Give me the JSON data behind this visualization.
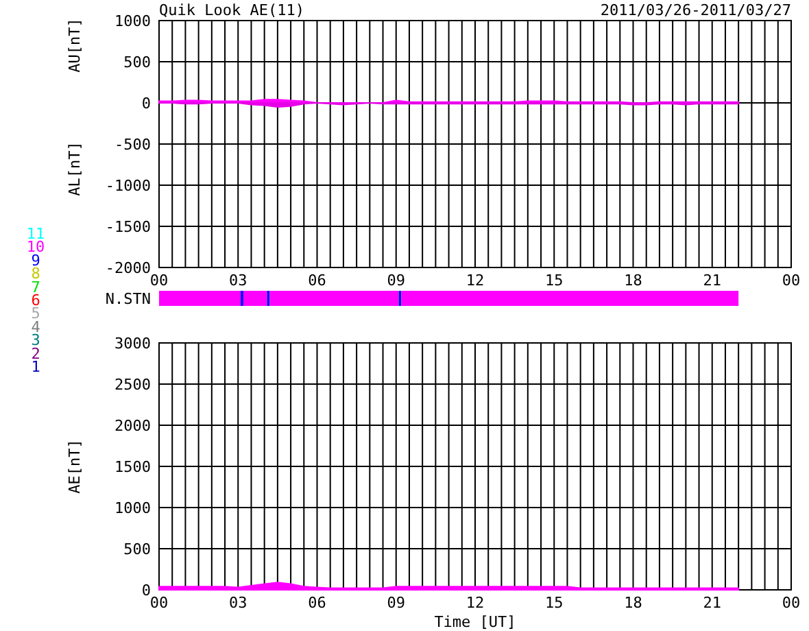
{
  "chart_data": [
    {
      "type": "area",
      "title": "Quik Look AE(11)",
      "subtitle": "2011/03/26-2011/03/27",
      "ylabel": "AU[nT]",
      "annotations": [
        "AL[nT]"
      ],
      "x": [
        0,
        0.5,
        1,
        1.5,
        2,
        2.5,
        3,
        3.5,
        4,
        4.5,
        5,
        5.5,
        6,
        6.5,
        7,
        7.5,
        8,
        8.5,
        9,
        9.5,
        10,
        10.5,
        11,
        11.5,
        12,
        12.5,
        13,
        13.5,
        14,
        14.5,
        15,
        15.5,
        16,
        16.5,
        17,
        17.5,
        18,
        18.5,
        19,
        19.5,
        20,
        20.5,
        21,
        21.5,
        22
      ],
      "series": [
        {
          "color": "#ff00ff",
          "values": [
            20,
            20,
            30,
            30,
            20,
            20,
            20,
            20,
            40,
            40,
            30,
            20,
            0,
            0,
            0,
            0,
            0,
            0,
            30,
            10,
            10,
            10,
            10,
            10,
            10,
            10,
            10,
            10,
            20,
            20,
            20,
            10,
            10,
            10,
            10,
            10,
            0,
            0,
            10,
            10,
            10,
            10,
            10,
            10,
            10
          ]
        },
        {
          "color": "#e600e6",
          "values": [
            0,
            0,
            -10,
            -10,
            0,
            0,
            0,
            -20,
            -30,
            -50,
            -40,
            -10,
            0,
            -10,
            -20,
            -10,
            0,
            -10,
            -10,
            -10,
            -10,
            -10,
            -10,
            -10,
            -10,
            -10,
            -10,
            -10,
            -10,
            -10,
            -10,
            -10,
            -10,
            -10,
            -10,
            -10,
            -20,
            -20,
            -10,
            -10,
            -20,
            -10,
            -10,
            -10,
            -10
          ]
        }
      ],
      "xlim": [
        0,
        24
      ],
      "ylim": [
        -2000,
        1000
      ],
      "xticks": [
        {
          "value": 0,
          "label": "00"
        },
        {
          "value": 0.5,
          "label": null
        },
        {
          "value": 1,
          "label": null
        },
        {
          "value": 1.5,
          "label": null
        },
        {
          "value": 2,
          "label": null
        },
        {
          "value": 2.5,
          "label": null
        },
        {
          "value": 3,
          "label": "03"
        },
        {
          "value": 3.5,
          "label": null
        },
        {
          "value": 4,
          "label": null
        },
        {
          "value": 4.5,
          "label": null
        },
        {
          "value": 5,
          "label": null
        },
        {
          "value": 5.5,
          "label": null
        },
        {
          "value": 6,
          "label": "06"
        },
        {
          "value": 6.5,
          "label": null
        },
        {
          "value": 7,
          "label": null
        },
        {
          "value": 7.5,
          "label": null
        },
        {
          "value": 8,
          "label": null
        },
        {
          "value": 8.5,
          "label": null
        },
        {
          "value": 9,
          "label": "09"
        },
        {
          "value": 9.5,
          "label": null
        },
        {
          "value": 10,
          "label": null
        },
        {
          "value": 10.5,
          "label": null
        },
        {
          "value": 11,
          "label": null
        },
        {
          "value": 11.5,
          "label": null
        },
        {
          "value": 12,
          "label": "12"
        },
        {
          "value": 12.5,
          "label": null
        },
        {
          "value": 13,
          "label": null
        },
        {
          "value": 13.5,
          "label": null
        },
        {
          "value": 14,
          "label": null
        },
        {
          "value": 14.5,
          "label": null
        },
        {
          "value": 15,
          "label": "15"
        },
        {
          "value": 15.5,
          "label": null
        },
        {
          "value": 16,
          "label": null
        },
        {
          "value": 16.5,
          "label": null
        },
        {
          "value": 17,
          "label": null
        },
        {
          "value": 17.5,
          "label": null
        },
        {
          "value": 18,
          "label": "18"
        },
        {
          "value": 18.5,
          "label": null
        },
        {
          "value": 19,
          "label": null
        },
        {
          "value": 19.5,
          "label": null
        },
        {
          "value": 20,
          "label": null
        },
        {
          "value": 20.5,
          "label": null
        },
        {
          "value": 21,
          "label": "21"
        },
        {
          "value": 21.5,
          "label": null
        },
        {
          "value": 22,
          "label": null
        },
        {
          "value": 22.5,
          "label": null
        },
        {
          "value": 23,
          "label": null
        },
        {
          "value": 23.5,
          "label": null
        },
        {
          "value": 24,
          "label": "00"
        }
      ],
      "yticks": [
        1000,
        500,
        0,
        -500,
        -1000,
        -1500,
        -2000
      ],
      "grid": true
    },
    {
      "type": "bar",
      "orientation": "horizontal",
      "stacked": true,
      "categories": [
        "N.STN"
      ],
      "xlim": [
        0,
        24
      ],
      "tick_labels": "y",
      "legend": "left",
      "series": [
        {
          "name": "11",
          "color": "#00ffff",
          "values": [
            0
          ]
        },
        {
          "name": "10",
          "color": "#ff00ff",
          "values": [
            3.1
          ]
        },
        {
          "name": "9",
          "color": "#0000ff",
          "values": [
            0.1
          ]
        },
        {
          "name": "8",
          "color": "#c8c800",
          "values": [
            0
          ]
        },
        {
          "name": "7",
          "color": "#00e000",
          "values": [
            0
          ]
        },
        {
          "name": "6",
          "color": "#ff0000",
          "values": [
            0
          ]
        },
        {
          "name": "5",
          "color": "#a8a8a8",
          "values": [
            0
          ]
        },
        {
          "name": "4",
          "color": "#808080",
          "values": [
            0
          ]
        },
        {
          "name": "3",
          "color": "#008080",
          "values": [
            0
          ]
        },
        {
          "name": "2",
          "color": "#800080",
          "values": [
            0
          ]
        },
        {
          "name": "1",
          "color": "#0000c0",
          "values": [
            0
          ]
        },
        {
          "color": "#ff00ff",
          "values": [
            0.9
          ]
        },
        {
          "color": "#0000ff",
          "values": [
            0.1
          ]
        },
        {
          "color": "#ff00ff",
          "values": [
            4.9
          ]
        },
        {
          "color": "#0000ff",
          "values": [
            0.1
          ]
        },
        {
          "color": "#ff00ff",
          "values": [
            12.8
          ]
        }
      ]
    },
    {
      "type": "area",
      "xlabel": "Time [UT]",
      "ylabel": "AE[nT]",
      "x": [
        0,
        0.5,
        1,
        1.5,
        2,
        2.5,
        3,
        3.5,
        4,
        4.5,
        5,
        5.5,
        6,
        6.5,
        7,
        7.5,
        8,
        8.5,
        9,
        9.5,
        10,
        10.5,
        11,
        11.5,
        12,
        12.5,
        13,
        13.5,
        14,
        14.5,
        15,
        15.5,
        16,
        16.5,
        17,
        17.5,
        18,
        18.5,
        19,
        19.5,
        20,
        20.5,
        21,
        21.5,
        22
      ],
      "series": [
        {
          "color": "#ff00ff",
          "values": [
            40,
            40,
            40,
            40,
            40,
            40,
            30,
            50,
            70,
            90,
            70,
            40,
            30,
            20,
            20,
            20,
            20,
            20,
            40,
            40,
            40,
            40,
            40,
            40,
            40,
            40,
            40,
            40,
            40,
            40,
            40,
            40,
            20,
            20,
            20,
            20,
            20,
            20,
            20,
            20,
            20,
            20,
            20,
            20,
            20
          ]
        }
      ],
      "xlim": [
        0,
        24
      ],
      "ylim": [
        0,
        3000
      ],
      "xticks": [
        {
          "value": 0,
          "label": "00"
        },
        {
          "value": 0.5,
          "label": null
        },
        {
          "value": 1,
          "label": null
        },
        {
          "value": 1.5,
          "label": null
        },
        {
          "value": 2,
          "label": null
        },
        {
          "value": 2.5,
          "label": null
        },
        {
          "value": 3,
          "label": "03"
        },
        {
          "value": 3.5,
          "label": null
        },
        {
          "value": 4,
          "label": null
        },
        {
          "value": 4.5,
          "label": null
        },
        {
          "value": 5,
          "label": null
        },
        {
          "value": 5.5,
          "label": null
        },
        {
          "value": 6,
          "label": "06"
        },
        {
          "value": 6.5,
          "label": null
        },
        {
          "value": 7,
          "label": null
        },
        {
          "value": 7.5,
          "label": null
        },
        {
          "value": 8,
          "label": null
        },
        {
          "value": 8.5,
          "label": null
        },
        {
          "value": 9,
          "label": "09"
        },
        {
          "value": 9.5,
          "label": null
        },
        {
          "value": 10,
          "label": null
        },
        {
          "value": 10.5,
          "label": null
        },
        {
          "value": 11,
          "label": null
        },
        {
          "value": 11.5,
          "label": null
        },
        {
          "value": 12,
          "label": "12"
        },
        {
          "value": 12.5,
          "label": null
        },
        {
          "value": 13,
          "label": null
        },
        {
          "value": 13.5,
          "label": null
        },
        {
          "value": 14,
          "label": null
        },
        {
          "value": 14.5,
          "label": null
        },
        {
          "value": 15,
          "label": "15"
        },
        {
          "value": 15.5,
          "label": null
        },
        {
          "value": 16,
          "label": null
        },
        {
          "value": 16.5,
          "label": null
        },
        {
          "value": 17,
          "label": null
        },
        {
          "value": 17.5,
          "label": null
        },
        {
          "value": 18,
          "label": "18"
        },
        {
          "value": 18.5,
          "label": null
        },
        {
          "value": 19,
          "label": null
        },
        {
          "value": 19.5,
          "label": null
        },
        {
          "value": 20,
          "label": null
        },
        {
          "value": 20.5,
          "label": null
        },
        {
          "value": 21,
          "label": "21"
        },
        {
          "value": 21.5,
          "label": null
        },
        {
          "value": 22,
          "label": null
        },
        {
          "value": 22.5,
          "label": null
        },
        {
          "value": 23,
          "label": null
        },
        {
          "value": 23.5,
          "label": null
        },
        {
          "value": 24,
          "label": "00"
        }
      ],
      "yticks": [
        0,
        500,
        1000,
        1500,
        2000,
        2500,
        3000
      ],
      "grid": true
    }
  ]
}
